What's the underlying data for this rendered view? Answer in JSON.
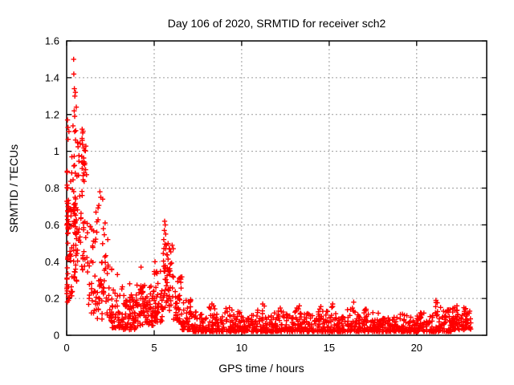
{
  "chart_data": {
    "type": "scatter",
    "title": "Day 106 of 2020, SRMTID for receiver sch2",
    "xlabel": "GPS time / hours",
    "ylabel": "SRMTID / TECUs",
    "xlim": [
      0,
      24
    ],
    "ylim": [
      0,
      1.6
    ],
    "xticks": [
      0,
      5,
      10,
      15,
      20
    ],
    "xtick_labels": [
      "0",
      "5",
      "10",
      "15",
      "20"
    ],
    "yticks": [
      0,
      0.2,
      0.4,
      0.6,
      0.8,
      1.0,
      1.2,
      1.4,
      1.6
    ],
    "ytick_labels": [
      "0",
      "0.2",
      "0.4",
      "0.6",
      "0.8",
      "1",
      "1.2",
      "1.4",
      "1.6"
    ],
    "grid": true,
    "legend": "none",
    "marker": "plus",
    "colors": {
      "marker": "#ff0000",
      "grid": "#9c9c9c",
      "border": "#000000",
      "background": "#ffffff",
      "text": "#000000"
    },
    "series": [
      {
        "name": "SRMTID",
        "bin_format": "[x_start, x_end, y_min, y_max, point_count, bottom_bias_exponent]",
        "density_bins": [
          [
            0.0,
            0.15,
            0.18,
            1.17,
            34,
            1.5
          ],
          [
            0.02,
            0.12,
            0.55,
            0.75,
            16,
            1.0
          ],
          [
            0.15,
            0.35,
            0.2,
            1.0,
            22,
            1.4
          ],
          [
            0.35,
            0.55,
            0.3,
            1.28,
            34,
            1.1
          ],
          [
            0.35,
            0.52,
            0.55,
            0.72,
            12,
            1.0
          ],
          [
            0.55,
            0.8,
            0.25,
            1.05,
            24,
            1.3
          ],
          [
            0.8,
            1.15,
            0.35,
            1.12,
            30,
            1.2
          ],
          [
            0.85,
            1.1,
            0.83,
            1.05,
            12,
            1.0
          ],
          [
            1.15,
            1.6,
            0.12,
            0.62,
            28,
            1.4
          ],
          [
            1.6,
            2.2,
            0.22,
            0.72,
            32,
            1.1
          ],
          [
            1.6,
            2.2,
            0.08,
            0.25,
            16,
            1.2
          ],
          [
            2.2,
            2.6,
            0.07,
            0.45,
            26,
            1.5
          ],
          [
            2.6,
            3.2,
            0.04,
            0.28,
            40,
            1.7
          ],
          [
            3.2,
            4.0,
            0.03,
            0.22,
            70,
            1.5
          ],
          [
            4.0,
            5.0,
            0.05,
            0.28,
            85,
            1.2
          ],
          [
            5.0,
            5.5,
            0.07,
            0.35,
            45,
            1.3
          ],
          [
            5.5,
            6.1,
            0.12,
            0.5,
            60,
            1.1
          ],
          [
            6.1,
            6.6,
            0.06,
            0.32,
            40,
            1.5
          ],
          [
            6.6,
            7.2,
            0.03,
            0.2,
            45,
            1.6
          ],
          [
            7.2,
            7.7,
            0.02,
            0.13,
            32,
            2.0
          ],
          [
            7.7,
            8.1,
            0.02,
            0.12,
            30,
            2.0
          ],
          [
            8.1,
            8.5,
            0.02,
            0.17,
            32,
            2.0
          ],
          [
            8.5,
            9.0,
            0.02,
            0.12,
            32,
            2.0
          ],
          [
            9.0,
            9.5,
            0.02,
            0.15,
            32,
            2.0
          ],
          [
            9.5,
            10.0,
            0.02,
            0.13,
            32,
            2.0
          ],
          [
            10.0,
            10.5,
            0.02,
            0.12,
            32,
            2.0
          ],
          [
            10.5,
            11.0,
            0.02,
            0.15,
            32,
            2.0
          ],
          [
            11.0,
            11.5,
            0.02,
            0.16,
            32,
            2.0
          ],
          [
            11.5,
            12.0,
            0.02,
            0.13,
            32,
            2.0
          ],
          [
            12.0,
            12.5,
            0.02,
            0.15,
            32,
            2.0
          ],
          [
            12.5,
            13.0,
            0.02,
            0.12,
            32,
            2.0
          ],
          [
            13.0,
            13.5,
            0.02,
            0.16,
            32,
            2.0
          ],
          [
            13.5,
            14.0,
            0.02,
            0.12,
            32,
            2.0
          ],
          [
            14.0,
            14.5,
            0.02,
            0.15,
            32,
            2.0
          ],
          [
            14.5,
            15.0,
            0.02,
            0.16,
            32,
            2.0
          ],
          [
            15.0,
            15.5,
            0.02,
            0.16,
            32,
            2.0
          ],
          [
            15.5,
            16.0,
            0.02,
            0.12,
            32,
            2.0
          ],
          [
            16.0,
            16.5,
            0.02,
            0.17,
            32,
            2.0
          ],
          [
            16.5,
            17.0,
            0.02,
            0.13,
            32,
            2.0
          ],
          [
            17.0,
            17.5,
            0.02,
            0.15,
            32,
            2.0
          ],
          [
            17.5,
            18.0,
            0.02,
            0.12,
            32,
            2.0
          ],
          [
            18.0,
            18.5,
            0.02,
            0.1,
            30,
            2.0
          ],
          [
            18.5,
            19.0,
            0.02,
            0.1,
            30,
            2.0
          ],
          [
            19.0,
            19.5,
            0.02,
            0.12,
            30,
            2.0
          ],
          [
            19.5,
            20.0,
            0.02,
            0.1,
            30,
            2.0
          ],
          [
            20.0,
            20.5,
            0.02,
            0.13,
            32,
            2.0
          ],
          [
            20.5,
            21.0,
            0.02,
            0.11,
            32,
            2.0
          ],
          [
            21.0,
            21.5,
            0.02,
            0.18,
            36,
            1.8
          ],
          [
            21.5,
            22.0,
            0.02,
            0.14,
            36,
            1.8
          ],
          [
            22.0,
            22.5,
            0.03,
            0.16,
            42,
            1.6
          ],
          [
            22.5,
            23.1,
            0.03,
            0.15,
            45,
            1.5
          ]
        ],
        "outlier_points": [
          [
            0.4,
            1.5
          ],
          [
            0.41,
            1.42
          ],
          [
            0.44,
            1.34
          ],
          [
            0.5,
            1.32
          ],
          [
            0.47,
            1.3
          ],
          [
            0.43,
            1.22
          ],
          [
            0.46,
            1.19
          ],
          [
            0.05,
            1.17
          ],
          [
            0.08,
            1.13
          ],
          [
            0.55,
            1.24
          ],
          [
            0.92,
            1.1
          ],
          [
            0.88,
            1.07
          ],
          [
            0.62,
            1.05
          ],
          [
            0.3,
            0.97
          ],
          [
            1.9,
            0.78
          ],
          [
            1.95,
            0.75
          ],
          [
            2.06,
            0.74
          ],
          [
            5.6,
            0.62
          ],
          [
            5.63,
            0.6
          ],
          [
            5.58,
            0.57
          ],
          [
            5.66,
            0.55
          ],
          [
            5.55,
            0.52
          ],
          [
            5.7,
            0.49
          ],
          [
            5.05,
            0.4
          ],
          [
            4.25,
            0.37
          ],
          [
            2.35,
            0.52
          ],
          [
            2.9,
            0.33
          ],
          [
            3.6,
            0.28
          ],
          [
            8.3,
            0.17
          ],
          [
            9.3,
            0.15
          ],
          [
            11.2,
            0.17
          ],
          [
            13.3,
            0.16
          ],
          [
            15.2,
            0.17
          ],
          [
            16.4,
            0.18
          ],
          [
            21.1,
            0.19
          ],
          [
            22.3,
            0.16
          ],
          [
            23.0,
            0.12
          ]
        ]
      }
    ]
  }
}
